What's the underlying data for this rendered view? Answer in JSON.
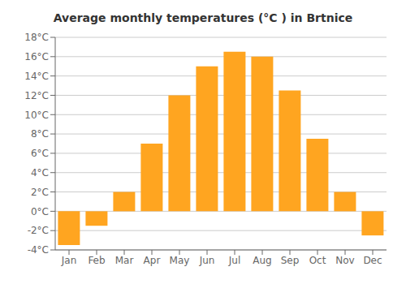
{
  "chart_data": {
    "type": "bar",
    "title": "Average monthly temperatures (°C ) in Brtnice",
    "categories": [
      "Jan",
      "Feb",
      "Mar",
      "Apr",
      "May",
      "Jun",
      "Jul",
      "Aug",
      "Sep",
      "Oct",
      "Nov",
      "Dec"
    ],
    "values": [
      -3.5,
      -1.5,
      2.0,
      7.0,
      12.0,
      15.0,
      16.5,
      16.0,
      12.5,
      7.5,
      2.0,
      -2.5
    ],
    "color": "#FFA520",
    "ylim": [
      -4,
      18
    ],
    "yticks": [
      {
        "value": -4,
        "label": "-4°C"
      },
      {
        "value": -2,
        "label": "-2°C"
      },
      {
        "value": 0,
        "label": "0°C"
      },
      {
        "value": 2,
        "label": "2°C"
      },
      {
        "value": 4,
        "label": "4°C"
      },
      {
        "value": 6,
        "label": "6°C"
      },
      {
        "value": 8,
        "label": "8°C"
      },
      {
        "value": 10,
        "label": "10°C"
      },
      {
        "value": 12,
        "label": "12°C"
      },
      {
        "value": 14,
        "label": "14°C"
      },
      {
        "value": 16,
        "label": "16°C"
      },
      {
        "value": 18,
        "label": "18°C"
      }
    ],
    "grid": true
  }
}
